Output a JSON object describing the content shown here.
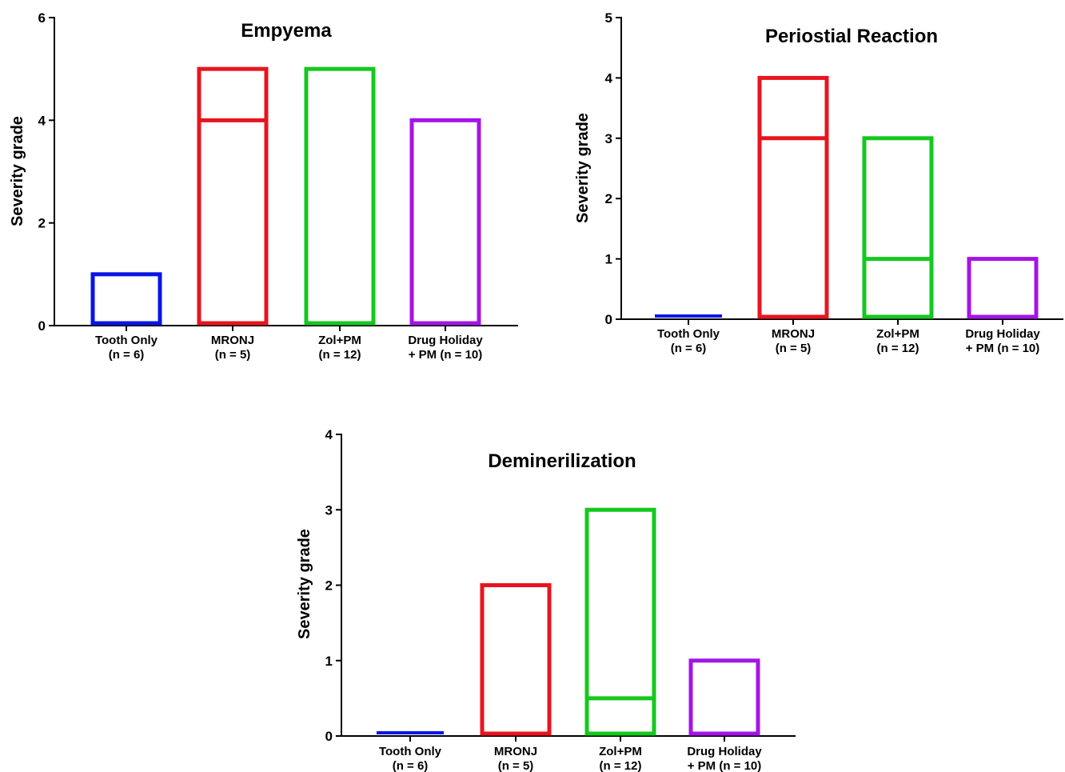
{
  "chart_data": [
    {
      "type": "bar",
      "title": "Empyema",
      "ylabel": "Severity grade",
      "xlabel": "",
      "ylim": [
        0,
        6
      ],
      "yticks": [
        0,
        2,
        4,
        6
      ],
      "categories": [
        "Tooth Only\n(n = 6)",
        "MRONJ\n(n = 5)",
        "Zol+PM\n(n = 12)",
        "Drug Holiday\n+ PM (n = 10)"
      ],
      "colors": [
        "#0a14e6",
        "#e8141e",
        "#14c81e",
        "#a514e6"
      ],
      "bars": [
        {
          "min": 0,
          "max": 1,
          "median": null
        },
        {
          "min": 0,
          "max": 5,
          "median": 4
        },
        {
          "min": 0,
          "max": 5,
          "median": null
        },
        {
          "min": 0,
          "max": 4,
          "median": null
        }
      ],
      "grid": false
    },
    {
      "type": "bar",
      "title": "Periostial Reaction",
      "ylabel": "Severity grade",
      "xlabel": "",
      "ylim": [
        0,
        5
      ],
      "yticks": [
        0,
        1,
        2,
        3,
        4,
        5
      ],
      "categories": [
        "Tooth Only\n(n = 6)",
        "MRONJ\n(n = 5)",
        "Zol+PM\n(n = 12)",
        "Drug Holiday\n+ PM (n = 10)"
      ],
      "colors": [
        "#0a14e6",
        "#e8141e",
        "#14c81e",
        "#a514e6"
      ],
      "bars": [
        {
          "min": 0,
          "max": 0,
          "median": null
        },
        {
          "min": 0,
          "max": 4,
          "median": 3
        },
        {
          "min": 0,
          "max": 3,
          "median": 1
        },
        {
          "min": 0,
          "max": 1,
          "median": null
        }
      ],
      "grid": false
    },
    {
      "type": "bar",
      "title": "Deminerilization",
      "ylabel": "Severity grade",
      "xlabel": "",
      "ylim": [
        0,
        4
      ],
      "yticks": [
        0,
        1,
        2,
        3,
        4
      ],
      "categories": [
        "Tooth Only\n(n = 6)",
        "MRONJ\n(n = 5)",
        "Zol+PM\n(n = 12)",
        "Drug Holiday\n+ PM (n = 10)"
      ],
      "colors": [
        "#0a14e6",
        "#e8141e",
        "#14c81e",
        "#a514e6"
      ],
      "bars": [
        {
          "min": 0,
          "max": 0,
          "median": null
        },
        {
          "min": 0,
          "max": 2,
          "median": null
        },
        {
          "min": 0,
          "max": 3,
          "median": 0.5
        },
        {
          "min": 0,
          "max": 1,
          "median": null
        }
      ],
      "grid": false
    }
  ]
}
